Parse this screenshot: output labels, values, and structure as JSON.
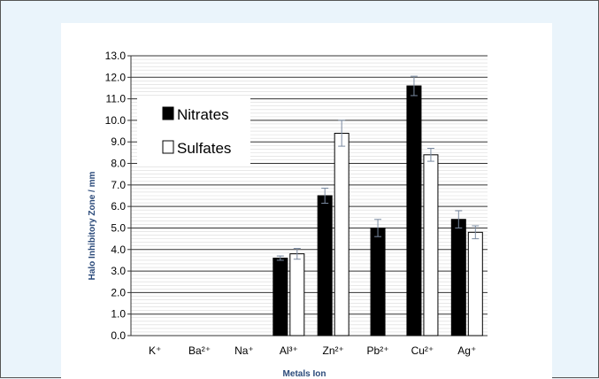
{
  "chart_data": {
    "type": "bar",
    "categories": [
      "K⁺",
      "Ba²⁺",
      "Na⁺",
      "Al³⁺",
      "Zn²⁺",
      "Pb²⁺",
      "Cu²⁺",
      "Ag⁺"
    ],
    "series": [
      {
        "name": "Nitrates",
        "values": [
          null,
          null,
          null,
          3.6,
          6.5,
          5.0,
          11.6,
          5.4
        ],
        "errors": [
          null,
          null,
          null,
          0.1,
          0.35,
          0.4,
          0.45,
          0.4
        ],
        "color": "#000000"
      },
      {
        "name": "Sulfates",
        "values": [
          null,
          null,
          null,
          3.8,
          9.4,
          null,
          8.4,
          4.8
        ],
        "errors": [
          null,
          null,
          null,
          0.25,
          0.6,
          null,
          0.3,
          0.3
        ],
        "color": "#ffffff"
      }
    ],
    "ylabel": "Halo Inhibitory Zone / mm",
    "xlabel": "Metals Ion",
    "ylim": [
      0,
      13
    ],
    "ytick_step": 1.0,
    "grid": true,
    "legend": "top-left"
  }
}
